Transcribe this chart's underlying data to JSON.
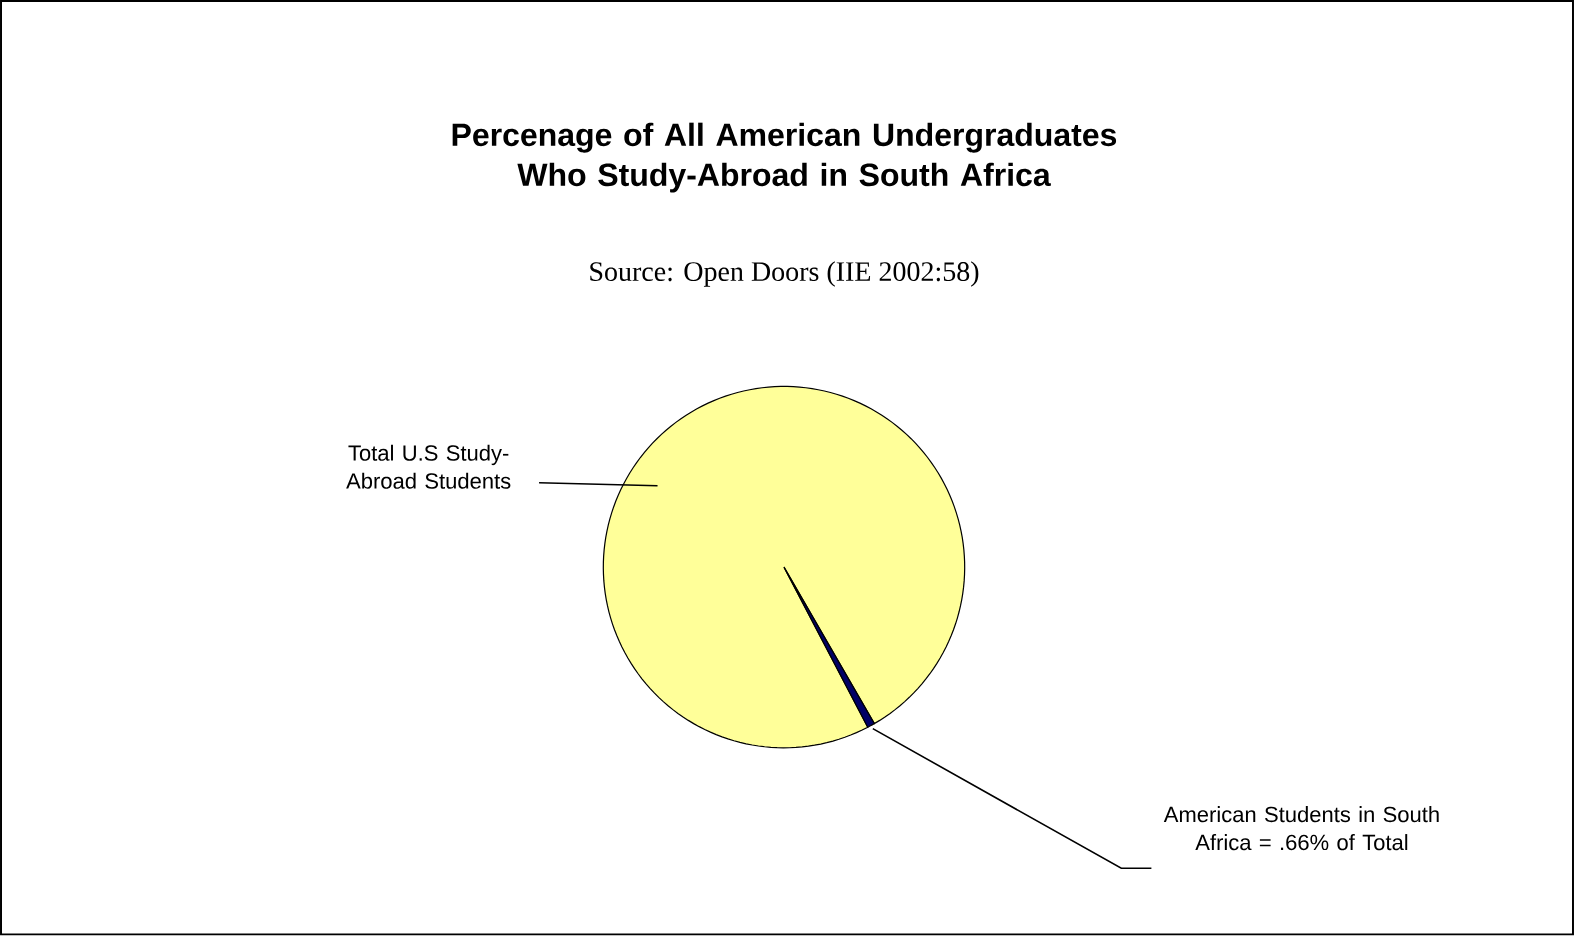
{
  "chart_data": {
    "type": "pie",
    "title": "Percenage of All American Undergraduates Who Study-Abroad in South Africa",
    "subtitle": "Source: Open Doors (IIE 2002:58)",
    "categories": [
      "Total U.S Study-Abroad Students",
      "American Students in South Africa = .66% of Total"
    ],
    "values": [
      99.34,
      0.66
    ],
    "colors": [
      "#ffff99",
      "#000066"
    ]
  }
}
